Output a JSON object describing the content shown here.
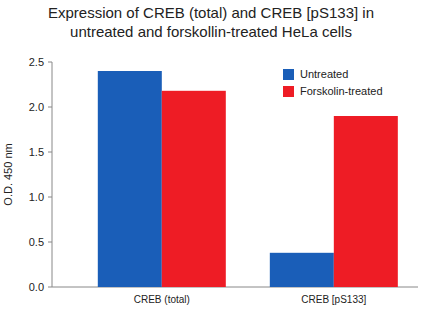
{
  "chart_data": {
    "type": "bar",
    "title": "Expression of CREB (total) and CREB [pS133] in untreated and forskollin-treated HeLa cells",
    "y_label": "O.D. 450 nm",
    "categories": [
      "CREB (total)",
      "CREB [pS133]"
    ],
    "series": [
      {
        "name": "Untreated",
        "color": "#1a5eb8",
        "values": [
          2.4,
          0.38
        ]
      },
      {
        "name": "Forskolin-treated",
        "color": "#ee1c25",
        "values": [
          2.18,
          1.9
        ]
      }
    ],
    "ylim": [
      0,
      2.5
    ],
    "yticks": [
      {
        "value": 0,
        "label": "0.0"
      },
      0.5,
      {
        "value": 1,
        "label": "1.0"
      },
      1.5,
      {
        "value": 2,
        "label": "2.0"
      },
      2.5
    ],
    "grid": false,
    "legend": "upper right"
  }
}
